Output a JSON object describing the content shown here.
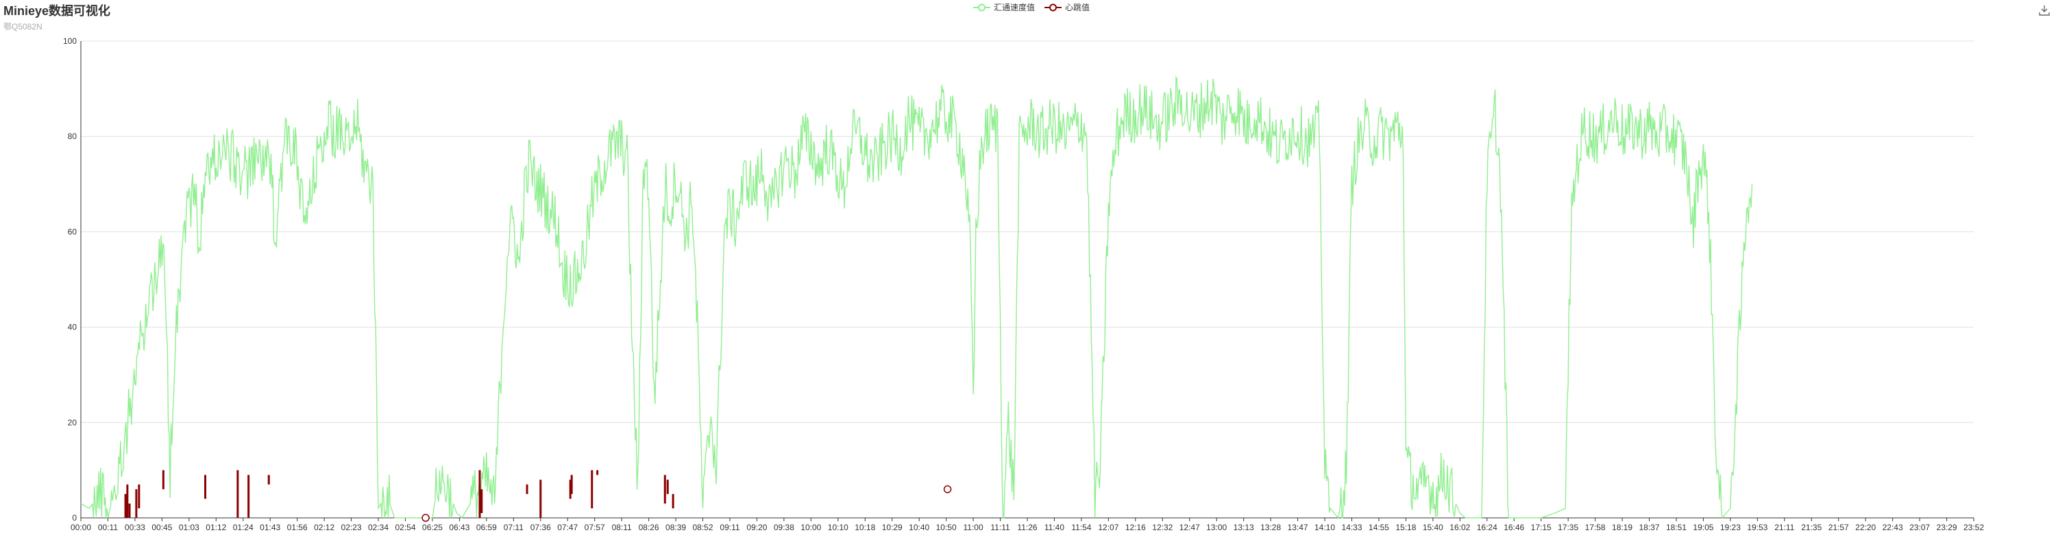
{
  "header": {
    "title": "Minieye数据可视化",
    "subtitle": "鄂Q5082N"
  },
  "toolbox": {
    "icon": "download-icon"
  },
  "colors": {
    "speed": "#90ee90",
    "heartbeat": "#8b0000",
    "grid": "#e0e0e0",
    "axis": "#333333"
  },
  "chart_data": {
    "type": "line",
    "title": "Minieye数据可视化",
    "subtitle": "鄂Q5082N",
    "legend": {
      "position": "top-center",
      "entries": [
        "汇通速度值",
        "心跳值"
      ]
    },
    "ylim": [
      0,
      100
    ],
    "yticks": [
      0,
      20,
      40,
      60,
      80,
      100
    ],
    "grid": true,
    "xlim": [
      "00:00",
      "23:59"
    ],
    "xticks": [
      "00:00",
      "00:11",
      "00:33",
      "00:45",
      "01:03",
      "01:12",
      "01:24",
      "01:43",
      "01:56",
      "02:12",
      "02:23",
      "02:34",
      "02:54",
      "06:25",
      "06:43",
      "06:59",
      "07:11",
      "07:36",
      "07:47",
      "07:57",
      "08:11",
      "08:26",
      "08:39",
      "08:52",
      "09:11",
      "09:20",
      "09:38",
      "10:00",
      "10:10",
      "10:18",
      "10:29",
      "10:40",
      "10:50",
      "11:00",
      "11:11",
      "11:26",
      "11:40",
      "11:54",
      "12:07",
      "12:16",
      "12:32",
      "12:47",
      "13:00",
      "13:13",
      "13:28",
      "13:47",
      "14:10",
      "14:33",
      "14:55",
      "15:18",
      "15:40",
      "16:02",
      "16:24",
      "16:46",
      "17:15",
      "17:35",
      "17:58",
      "18:19",
      "18:37",
      "18:51",
      "19:05",
      "19:23",
      "19:53",
      "21:11",
      "21:35",
      "21:57",
      "22:20",
      "22:43",
      "23:07",
      "23:29",
      "23:52"
    ],
    "series": [
      {
        "name": "汇通速度值",
        "style": "line",
        "noise": 6,
        "points": [
          [
            0.0,
            3
          ],
          [
            0.3,
            2
          ],
          [
            0.9,
            6
          ],
          [
            1.0,
            0
          ],
          [
            1.5,
            12
          ],
          [
            2.0,
            30
          ],
          [
            2.5,
            45
          ],
          [
            2.9,
            55
          ],
          [
            3.1,
            52
          ],
          [
            3.3,
            10
          ],
          [
            3.5,
            40
          ],
          [
            3.9,
            65
          ],
          [
            4.2,
            68
          ],
          [
            4.4,
            58
          ],
          [
            4.6,
            72
          ],
          [
            5.0,
            76
          ],
          [
            5.4,
            77
          ],
          [
            5.8,
            74
          ],
          [
            6.2,
            72
          ],
          [
            6.6,
            76
          ],
          [
            7.0,
            73
          ],
          [
            7.2,
            60
          ],
          [
            7.4,
            73
          ],
          [
            7.6,
            80
          ],
          [
            7.9,
            78
          ],
          [
            8.1,
            68
          ],
          [
            8.3,
            62
          ],
          [
            8.6,
            70
          ],
          [
            8.9,
            80
          ],
          [
            9.2,
            82
          ],
          [
            9.6,
            80
          ],
          [
            9.9,
            78
          ],
          [
            10.2,
            83
          ],
          [
            10.5,
            73
          ],
          [
            10.8,
            70
          ],
          [
            11.0,
            2
          ],
          [
            11.3,
            5
          ],
          [
            11.6,
            0
          ],
          [
            13.0,
            0
          ],
          [
            13.2,
            8
          ],
          [
            13.5,
            7
          ],
          [
            13.9,
            1
          ],
          [
            14.1,
            0
          ],
          [
            14.6,
            5
          ],
          [
            15.0,
            8
          ],
          [
            15.3,
            3
          ],
          [
            15.6,
            40
          ],
          [
            15.8,
            58
          ],
          [
            16.0,
            62
          ],
          [
            16.2,
            52
          ],
          [
            16.4,
            68
          ],
          [
            16.6,
            75
          ],
          [
            16.8,
            70
          ],
          [
            17.0,
            69
          ],
          [
            17.3,
            65
          ],
          [
            17.6,
            62
          ],
          [
            17.8,
            52
          ],
          [
            18.2,
            49
          ],
          [
            18.6,
            55
          ],
          [
            18.9,
            66
          ],
          [
            19.2,
            72
          ],
          [
            19.6,
            77
          ],
          [
            19.9,
            79
          ],
          [
            20.2,
            76
          ],
          [
            20.4,
            35
          ],
          [
            20.6,
            5
          ],
          [
            20.8,
            75
          ],
          [
            21.0,
            70
          ],
          [
            21.2,
            25
          ],
          [
            21.4,
            45
          ],
          [
            21.6,
            70
          ],
          [
            21.8,
            64
          ],
          [
            22.0,
            72
          ],
          [
            22.2,
            66
          ],
          [
            22.4,
            59
          ],
          [
            22.6,
            68
          ],
          [
            22.8,
            40
          ],
          [
            23.0,
            2
          ],
          [
            23.3,
            22
          ],
          [
            23.5,
            10
          ],
          [
            23.8,
            60
          ],
          [
            24.0,
            65
          ],
          [
            24.2,
            62
          ],
          [
            24.6,
            72
          ],
          [
            24.9,
            68
          ],
          [
            25.2,
            74
          ],
          [
            25.5,
            64
          ],
          [
            25.8,
            71
          ],
          [
            26.1,
            75
          ],
          [
            26.4,
            72
          ],
          [
            26.7,
            80
          ],
          [
            27.0,
            78
          ],
          [
            27.3,
            73
          ],
          [
            27.6,
            78
          ],
          [
            27.9,
            74
          ],
          [
            28.2,
            68
          ],
          [
            28.5,
            80
          ],
          [
            28.8,
            80
          ],
          [
            29.1,
            75
          ],
          [
            29.4,
            74
          ],
          [
            29.7,
            78
          ],
          [
            30.0,
            80
          ],
          [
            30.3,
            77
          ],
          [
            30.6,
            84
          ],
          [
            30.9,
            81
          ],
          [
            31.2,
            80
          ],
          [
            31.5,
            82
          ],
          [
            31.8,
            85
          ],
          [
            32.1,
            84
          ],
          [
            32.4,
            81
          ],
          [
            32.7,
            73
          ],
          [
            32.9,
            55
          ],
          [
            33.0,
            22
          ],
          [
            33.1,
            60
          ],
          [
            33.3,
            78
          ],
          [
            33.6,
            82
          ],
          [
            33.9,
            82
          ],
          [
            34.1,
            0
          ],
          [
            34.3,
            20
          ],
          [
            34.5,
            5
          ],
          [
            34.7,
            78
          ],
          [
            34.9,
            81
          ],
          [
            35.2,
            83
          ],
          [
            35.5,
            80
          ],
          [
            35.8,
            82
          ],
          [
            36.1,
            82
          ],
          [
            36.4,
            80
          ],
          [
            36.7,
            82
          ],
          [
            37.0,
            83
          ],
          [
            37.2,
            80
          ],
          [
            37.5,
            5
          ],
          [
            37.7,
            10
          ],
          [
            38.0,
            65
          ],
          [
            38.3,
            80
          ],
          [
            38.6,
            85
          ],
          [
            38.9,
            84
          ],
          [
            39.2,
            86
          ],
          [
            39.5,
            85
          ],
          [
            39.8,
            82
          ],
          [
            40.1,
            84
          ],
          [
            40.4,
            86
          ],
          [
            40.7,
            88
          ],
          [
            41.0,
            84
          ],
          [
            41.3,
            85
          ],
          [
            41.6,
            87
          ],
          [
            41.9,
            88
          ],
          [
            42.2,
            83
          ],
          [
            42.5,
            86
          ],
          [
            42.8,
            86
          ],
          [
            43.1,
            82
          ],
          [
            43.4,
            85
          ],
          [
            43.7,
            83
          ],
          [
            44.0,
            80
          ],
          [
            44.3,
            78
          ],
          [
            44.6,
            80
          ],
          [
            44.9,
            82
          ],
          [
            45.2,
            80
          ],
          [
            45.5,
            79
          ],
          [
            45.8,
            82
          ],
          [
            46.0,
            10
          ],
          [
            46.2,
            2
          ],
          [
            46.5,
            0
          ],
          [
            46.8,
            10
          ],
          [
            47.0,
            70
          ],
          [
            47.2,
            78
          ],
          [
            47.5,
            82
          ],
          [
            47.8,
            79
          ],
          [
            48.1,
            81
          ],
          [
            48.4,
            80
          ],
          [
            48.7,
            82
          ],
          [
            48.9,
            80
          ],
          [
            49.0,
            12
          ],
          [
            49.2,
            8
          ],
          [
            49.5,
            5
          ],
          [
            49.8,
            8
          ],
          [
            50.1,
            4
          ],
          [
            50.4,
            10
          ],
          [
            50.7,
            5
          ],
          [
            51.0,
            1
          ],
          [
            51.2,
            0
          ],
          [
            51.8,
            0
          ],
          [
            52.0,
            72
          ],
          [
            52.3,
            85
          ],
          [
            52.5,
            70
          ],
          [
            52.8,
            0
          ],
          [
            53.2,
            0
          ],
          [
            54.0,
            0
          ],
          [
            54.5,
            1
          ],
          [
            54.9,
            2
          ],
          [
            55.1,
            60
          ],
          [
            55.3,
            74
          ],
          [
            55.6,
            82
          ],
          [
            55.9,
            80
          ],
          [
            56.2,
            80
          ],
          [
            56.5,
            83
          ],
          [
            56.8,
            84
          ],
          [
            57.1,
            80
          ],
          [
            57.4,
            82
          ],
          [
            57.7,
            81
          ],
          [
            58.0,
            82
          ],
          [
            58.3,
            80
          ],
          [
            58.6,
            81
          ],
          [
            58.9,
            80
          ],
          [
            59.2,
            78
          ],
          [
            59.4,
            74
          ],
          [
            59.6,
            60
          ],
          [
            59.8,
            72
          ],
          [
            60.0,
            76
          ],
          [
            60.2,
            65
          ],
          [
            60.5,
            10
          ],
          [
            60.7,
            0
          ],
          [
            61.0,
            2
          ],
          [
            61.4,
            45
          ],
          [
            61.6,
            66
          ],
          [
            61.8,
            70
          ]
        ]
      },
      {
        "name": "心跳值",
        "style": "bars",
        "bars": [
          [
            1.65,
            0,
            5
          ],
          [
            1.72,
            0,
            7
          ],
          [
            1.8,
            0,
            3
          ],
          [
            2.05,
            0,
            6
          ],
          [
            2.15,
            2,
            7
          ],
          [
            3.05,
            6,
            10
          ],
          [
            4.6,
            4,
            9
          ],
          [
            5.8,
            0,
            10
          ],
          [
            6.2,
            0,
            9
          ],
          [
            6.95,
            7,
            9
          ],
          [
            14.75,
            0,
            10
          ],
          [
            14.82,
            1,
            6
          ],
          [
            16.5,
            5,
            7
          ],
          [
            17.0,
            0,
            8
          ],
          [
            18.1,
            4,
            8
          ],
          [
            18.15,
            5,
            9
          ],
          [
            18.9,
            2,
            10
          ],
          [
            19.1,
            9,
            10
          ],
          [
            21.6,
            3,
            9
          ],
          [
            21.7,
            5,
            8
          ],
          [
            21.9,
            2,
            5
          ]
        ],
        "markers": [
          [
            12.75,
            0
          ],
          [
            32.05,
            6
          ]
        ]
      }
    ]
  }
}
